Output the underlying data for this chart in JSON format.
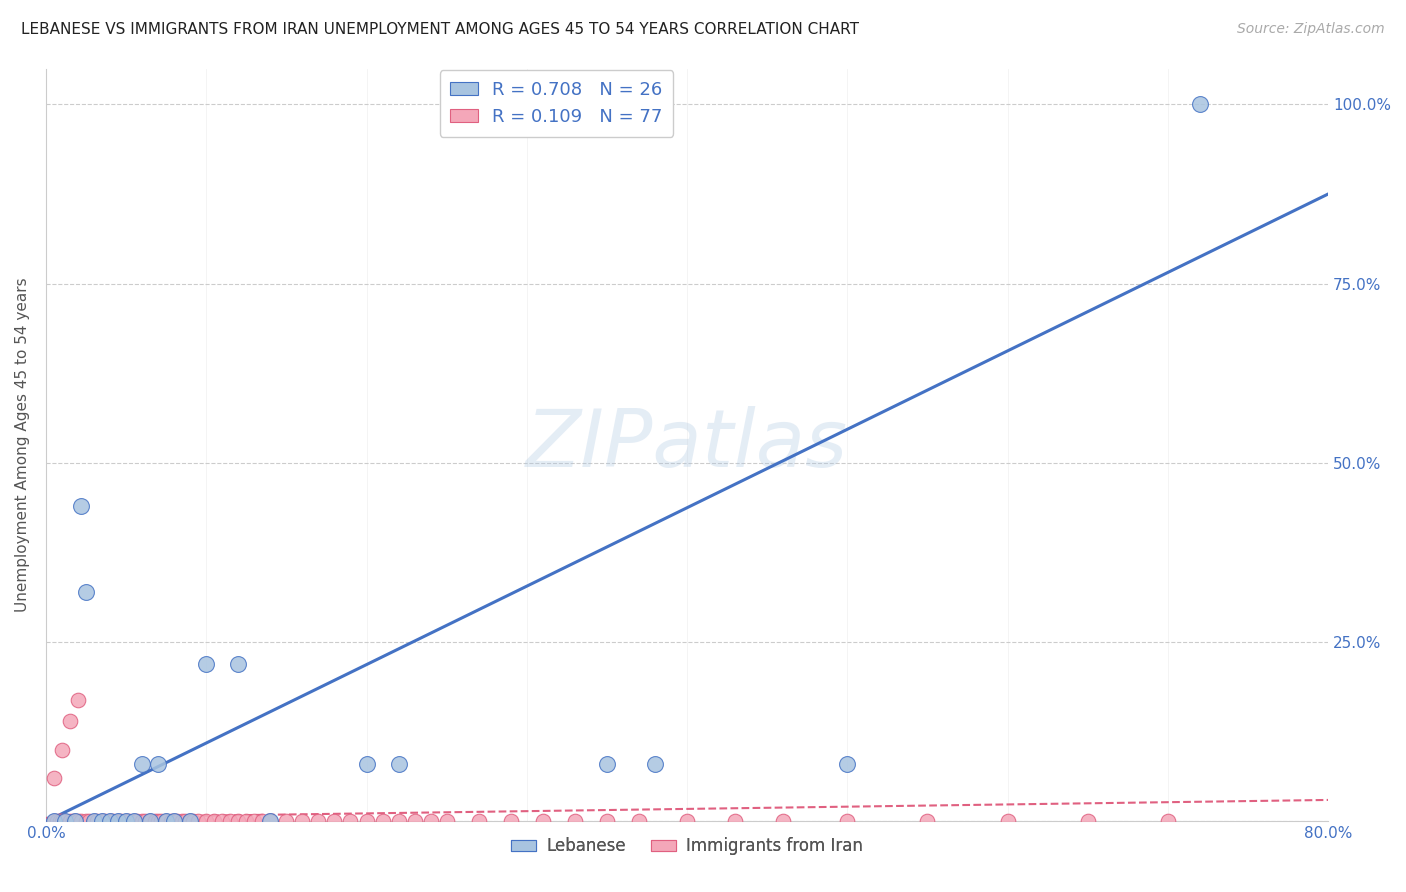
{
  "title": "LEBANESE VS IMMIGRANTS FROM IRAN UNEMPLOYMENT AMONG AGES 45 TO 54 YEARS CORRELATION CHART",
  "source": "Source: ZipAtlas.com",
  "ylabel": "Unemployment Among Ages 45 to 54 years",
  "xlim": [
    0.0,
    0.8
  ],
  "ylim": [
    0.0,
    1.05
  ],
  "x_ticks": [
    0.0,
    0.1,
    0.2,
    0.3,
    0.4,
    0.5,
    0.6,
    0.7,
    0.8
  ],
  "x_tick_labels": [
    "0.0%",
    "",
    "",
    "",
    "",
    "",
    "",
    "",
    "80.0%"
  ],
  "y_ticks": [
    0.0,
    0.25,
    0.5,
    0.75,
    1.0
  ],
  "y_tick_labels_right": [
    "",
    "25.0%",
    "50.0%",
    "75.0%",
    "100.0%"
  ],
  "watermark": "ZIPatlas",
  "legend_R1": "0.708",
  "legend_N1": "26",
  "legend_R2": "0.109",
  "legend_N2": "77",
  "color_lebanese": "#a8c4e0",
  "color_iran": "#f4a7b9",
  "color_line_lebanese": "#4472c4",
  "color_line_iran": "#e06080",
  "color_grid": "#cccccc",
  "color_axis_labels": "#4472c4",
  "leb_line_x0": 0.0,
  "leb_line_y0": 0.0,
  "leb_line_x1": 0.8,
  "leb_line_y1": 0.875,
  "iran_line_x0": 0.0,
  "iran_line_y0": 0.005,
  "iran_line_x1": 0.8,
  "iran_line_y1": 0.03,
  "leb_scatter_x": [
    0.005,
    0.012,
    0.018,
    0.022,
    0.025,
    0.03,
    0.035,
    0.04,
    0.045,
    0.05,
    0.055,
    0.06,
    0.065,
    0.07,
    0.075,
    0.08,
    0.09,
    0.1,
    0.12,
    0.14,
    0.2,
    0.22,
    0.35,
    0.38,
    0.5,
    0.72
  ],
  "leb_scatter_y": [
    0.0,
    0.0,
    0.0,
    0.44,
    0.32,
    0.0,
    0.0,
    0.0,
    0.0,
    0.0,
    0.0,
    0.08,
    0.0,
    0.08,
    0.0,
    0.0,
    0.0,
    0.22,
    0.22,
    0.0,
    0.08,
    0.08,
    0.08,
    0.08,
    0.08,
    1.0
  ],
  "iran_scatter_x": [
    0.005,
    0.007,
    0.009,
    0.01,
    0.012,
    0.015,
    0.017,
    0.018,
    0.02,
    0.022,
    0.025,
    0.027,
    0.03,
    0.032,
    0.035,
    0.037,
    0.04,
    0.042,
    0.045,
    0.047,
    0.05,
    0.052,
    0.055,
    0.057,
    0.06,
    0.062,
    0.065,
    0.068,
    0.07,
    0.072,
    0.075,
    0.078,
    0.08,
    0.082,
    0.085,
    0.087,
    0.09,
    0.092,
    0.095,
    0.1,
    0.105,
    0.11,
    0.115,
    0.12,
    0.125,
    0.13,
    0.135,
    0.14,
    0.15,
    0.16,
    0.17,
    0.18,
    0.19,
    0.2,
    0.21,
    0.22,
    0.23,
    0.24,
    0.25,
    0.27,
    0.29,
    0.31,
    0.33,
    0.35,
    0.37,
    0.4,
    0.43,
    0.46,
    0.5,
    0.55,
    0.6,
    0.65,
    0.7,
    0.005,
    0.01,
    0.015,
    0.02
  ],
  "iran_scatter_y": [
    0.0,
    0.0,
    0.0,
    0.0,
    0.0,
    0.0,
    0.0,
    0.0,
    0.0,
    0.0,
    0.0,
    0.0,
    0.0,
    0.0,
    0.0,
    0.0,
    0.0,
    0.0,
    0.0,
    0.0,
    0.0,
    0.0,
    0.0,
    0.0,
    0.0,
    0.0,
    0.0,
    0.0,
    0.0,
    0.0,
    0.0,
    0.0,
    0.0,
    0.0,
    0.0,
    0.0,
    0.0,
    0.0,
    0.0,
    0.0,
    0.0,
    0.0,
    0.0,
    0.0,
    0.0,
    0.0,
    0.0,
    0.0,
    0.0,
    0.0,
    0.0,
    0.0,
    0.0,
    0.0,
    0.0,
    0.0,
    0.0,
    0.0,
    0.0,
    0.0,
    0.0,
    0.0,
    0.0,
    0.0,
    0.0,
    0.0,
    0.0,
    0.0,
    0.0,
    0.0,
    0.0,
    0.0,
    0.0,
    0.06,
    0.1,
    0.14,
    0.17
  ]
}
